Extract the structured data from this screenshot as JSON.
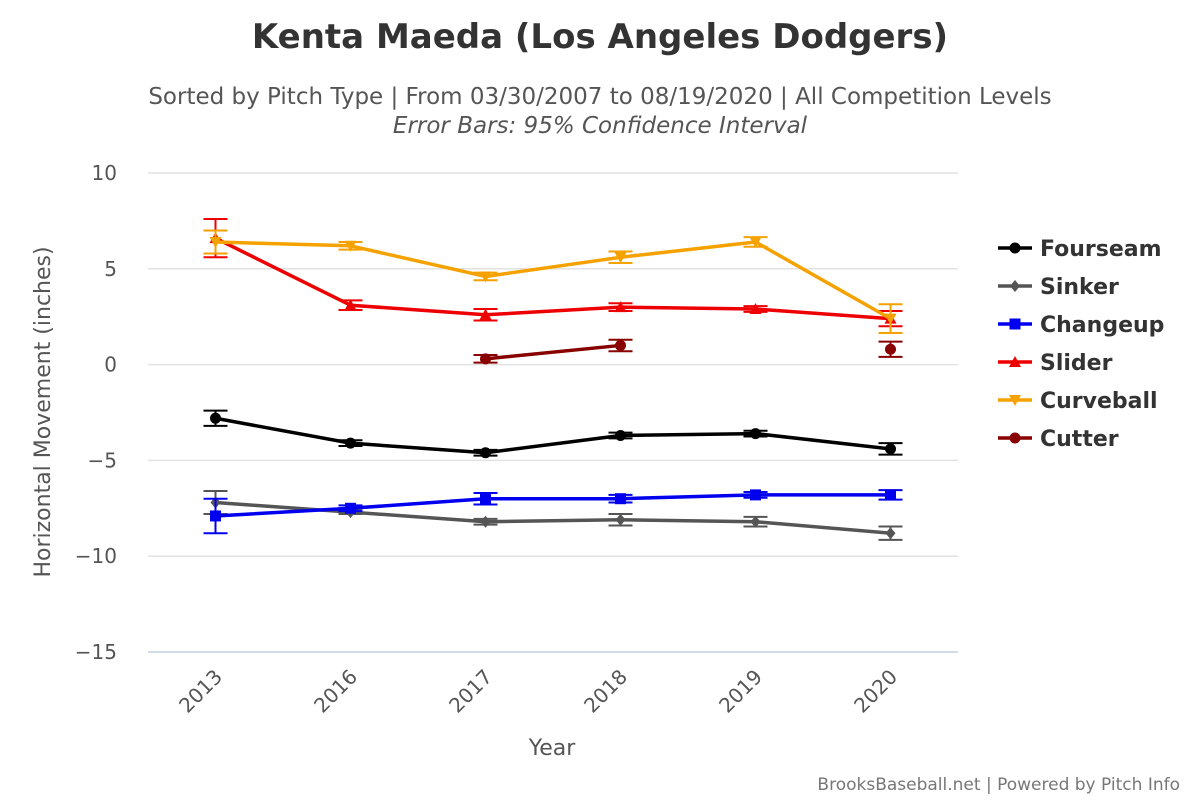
{
  "chart_data": {
    "type": "line",
    "title": "Kenta Maeda (Los Angeles Dodgers)",
    "subtitle": "Sorted by Pitch Type | From 03/30/2007 to 08/19/2020 | All Competition Levels",
    "subtitle2": "Error Bars: 95% Confidence Interval",
    "xlabel": "Year",
    "ylabel": "Horizontal Movement (inches)",
    "categories": [
      "2013",
      "2016",
      "2017",
      "2018",
      "2019",
      "2020"
    ],
    "ylim": [
      -15,
      10
    ],
    "yticks": [
      10,
      5,
      0,
      -5,
      -10,
      -15
    ],
    "ytick_labels": [
      "10",
      "5",
      "0",
      "−5",
      "−10",
      "−15"
    ],
    "grid": true,
    "legend_position": "right",
    "credits": "BrooksBaseball.net | Powered by Pitch Info",
    "series": [
      {
        "name": "Fourseam",
        "color": "#000000",
        "marker": "circle",
        "values": [
          -2.8,
          -4.1,
          -4.6,
          -3.7,
          -3.6,
          -4.4
        ],
        "err": [
          0.4,
          0.15,
          0.15,
          0.15,
          0.15,
          0.3
        ]
      },
      {
        "name": "Sinker",
        "color": "#555555",
        "marker": "diamond",
        "values": [
          -7.2,
          -7.7,
          -8.2,
          -8.1,
          -8.2,
          -8.8
        ],
        "err": [
          0.6,
          0.1,
          0.15,
          0.3,
          0.25,
          0.35
        ]
      },
      {
        "name": "Changeup",
        "color": "#0000ee",
        "marker": "square",
        "values": [
          -7.9,
          -7.5,
          -7.0,
          -7.0,
          -6.8,
          -6.8
        ],
        "err": [
          0.9,
          0.15,
          0.3,
          0.2,
          0.15,
          0.25
        ]
      },
      {
        "name": "Slider",
        "color": "#ee0000",
        "marker": "triangle",
        "values": [
          6.6,
          3.1,
          2.6,
          3.0,
          2.9,
          2.4
        ],
        "err": [
          1.0,
          0.25,
          0.3,
          0.2,
          0.15,
          0.4
        ]
      },
      {
        "name": "Curveball",
        "color": "#f5a200",
        "marker": "triangle-down",
        "values": [
          6.4,
          6.2,
          4.6,
          5.6,
          6.4,
          2.4
        ],
        "err": [
          0.6,
          0.2,
          0.2,
          0.3,
          0.25,
          0.75
        ]
      },
      {
        "name": "Cutter",
        "color": "#880000",
        "marker": "circle",
        "values": [
          null,
          null,
          0.3,
          1.0,
          null,
          0.8
        ],
        "err": [
          null,
          null,
          0.2,
          0.3,
          null,
          0.4
        ]
      }
    ]
  }
}
